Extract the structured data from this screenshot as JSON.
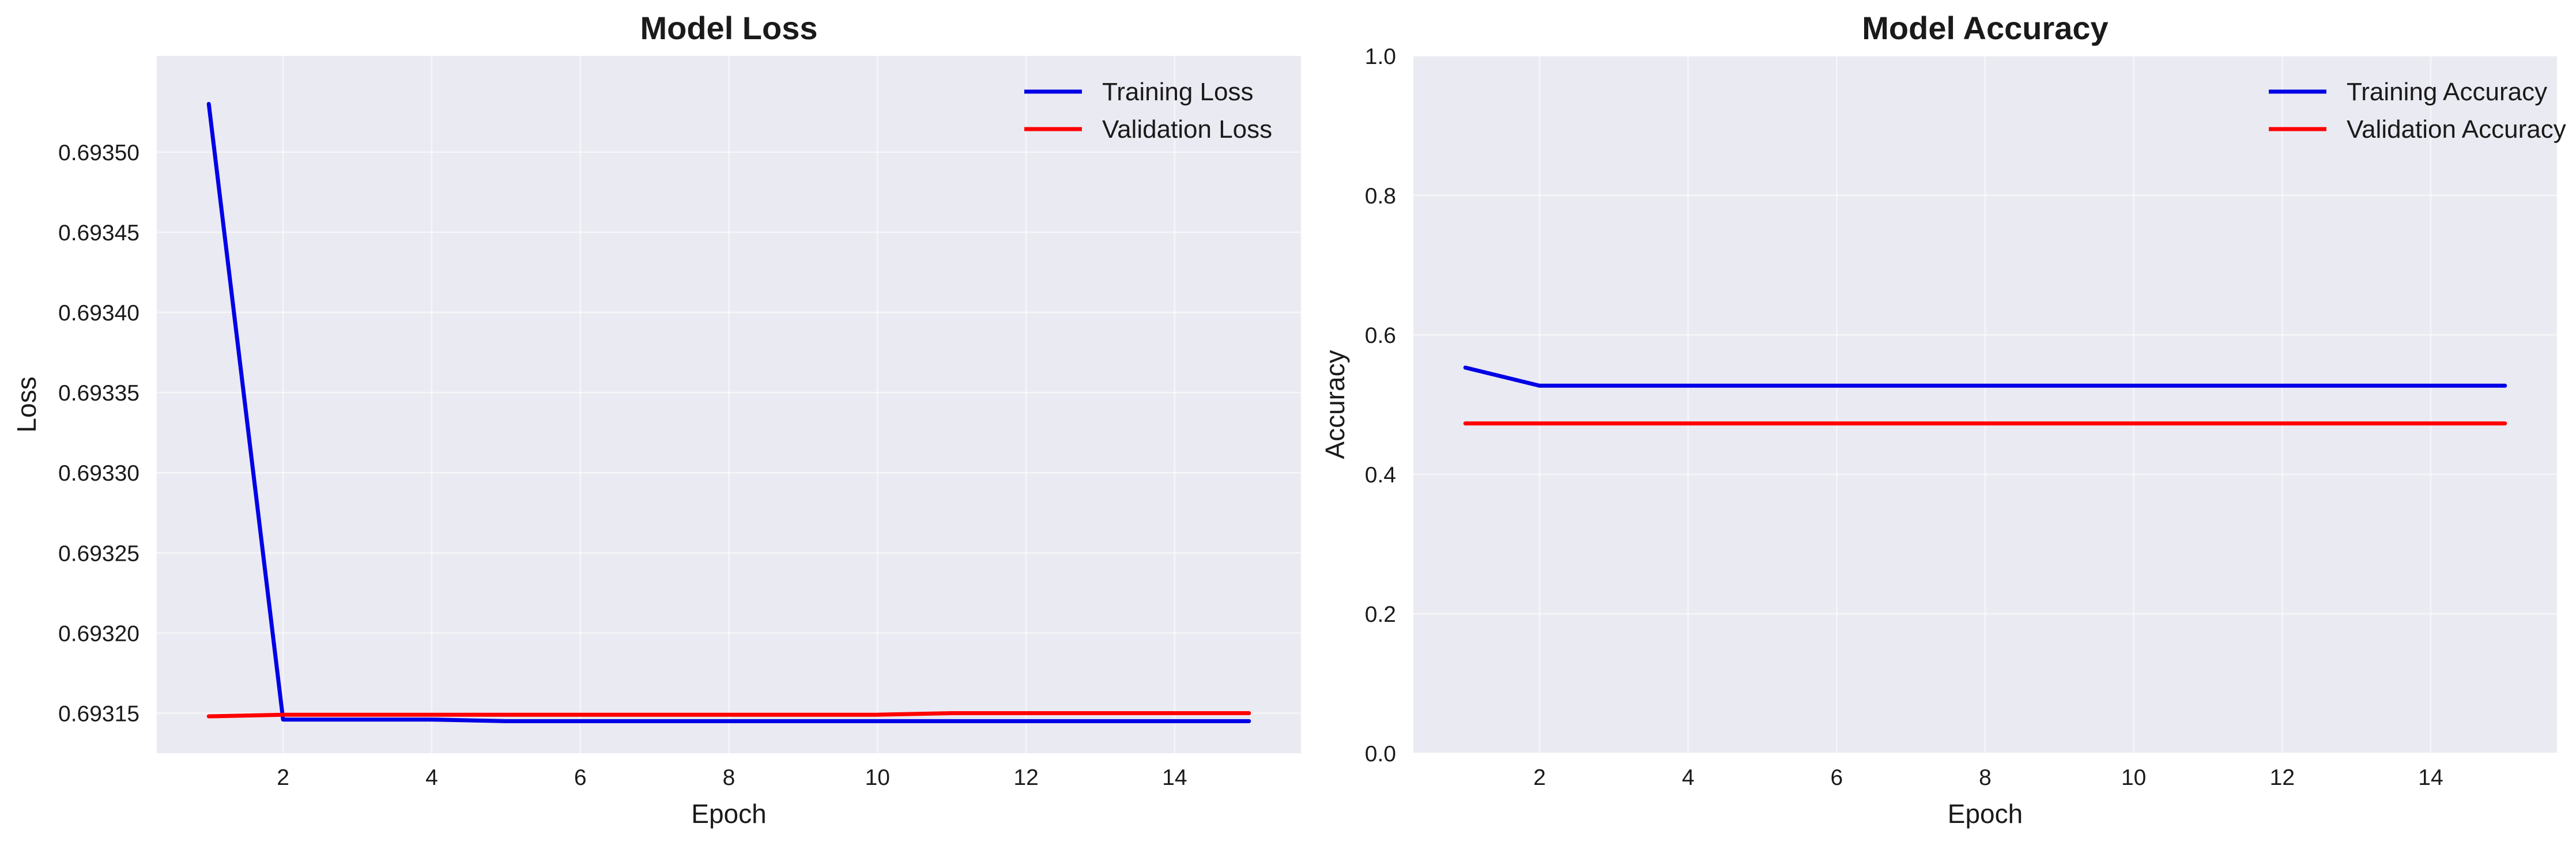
{
  "chart_data": [
    {
      "type": "line",
      "title": "Model Loss",
      "xlabel": "Epoch",
      "ylabel": "Loss",
      "xlim": [
        0.3,
        15.7
      ],
      "ylim": [
        0.693125,
        0.69356
      ],
      "xticks": [
        2,
        4,
        6,
        8,
        10,
        12,
        14
      ],
      "xtick_labels": [
        "2",
        "4",
        "6",
        "8",
        "10",
        "12",
        "14"
      ],
      "yticks": [
        0.69315,
        0.6932,
        0.69325,
        0.6933,
        0.69335,
        0.6934,
        0.69345,
        0.6935
      ],
      "ytick_labels": [
        "0.69315",
        "0.69320",
        "0.69325",
        "0.69330",
        "0.69335",
        "0.69340",
        "0.69345",
        "0.69350"
      ],
      "grid": true,
      "legend_position": "upper right",
      "x": [
        1,
        2,
        3,
        4,
        5,
        6,
        7,
        8,
        9,
        10,
        11,
        12,
        13,
        14,
        15
      ],
      "series": [
        {
          "name": "Training Loss",
          "color": "#0000e6",
          "values": [
            0.69353,
            0.693146,
            0.693146,
            0.693146,
            0.693145,
            0.693145,
            0.693145,
            0.693145,
            0.693145,
            0.693145,
            0.693145,
            0.693145,
            0.693145,
            0.693145,
            0.693145
          ]
        },
        {
          "name": "Validation Loss",
          "color": "#ff0000",
          "values": [
            0.693148,
            0.693149,
            0.693149,
            0.693149,
            0.693149,
            0.693149,
            0.693149,
            0.693149,
            0.693149,
            0.693149,
            0.69315,
            0.69315,
            0.69315,
            0.69315,
            0.69315
          ]
        }
      ]
    },
    {
      "type": "line",
      "title": "Model Accuracy",
      "xlabel": "Epoch",
      "ylabel": "Accuracy",
      "xlim": [
        0.3,
        15.7
      ],
      "ylim": [
        0,
        1
      ],
      "xticks": [
        2,
        4,
        6,
        8,
        10,
        12,
        14
      ],
      "xtick_labels": [
        "2",
        "4",
        "6",
        "8",
        "10",
        "12",
        "14"
      ],
      "yticks": [
        0,
        0.2,
        0.4,
        0.6,
        0.8,
        1
      ],
      "ytick_labels": [
        "0.0",
        "0.2",
        "0.4",
        "0.6",
        "0.8",
        "1.0"
      ],
      "grid": true,
      "legend_position": "upper right",
      "x": [
        1,
        2,
        3,
        4,
        5,
        6,
        7,
        8,
        9,
        10,
        11,
        12,
        13,
        14,
        15
      ],
      "series": [
        {
          "name": "Training Accuracy",
          "color": "#0000e6",
          "values": [
            0.553,
            0.527,
            0.527,
            0.527,
            0.527,
            0.527,
            0.527,
            0.527,
            0.527,
            0.527,
            0.527,
            0.527,
            0.527,
            0.527,
            0.527
          ]
        },
        {
          "name": "Validation Accuracy",
          "color": "#ff0000",
          "values": [
            0.473,
            0.473,
            0.473,
            0.473,
            0.473,
            0.473,
            0.473,
            0.473,
            0.473,
            0.473,
            0.473,
            0.473,
            0.473,
            0.473,
            0.473
          ]
        }
      ]
    }
  ],
  "style": {
    "plot_background": "#eaeaf2",
    "grid_color": "#ffffff",
    "text_color": "#1a1a1a"
  }
}
